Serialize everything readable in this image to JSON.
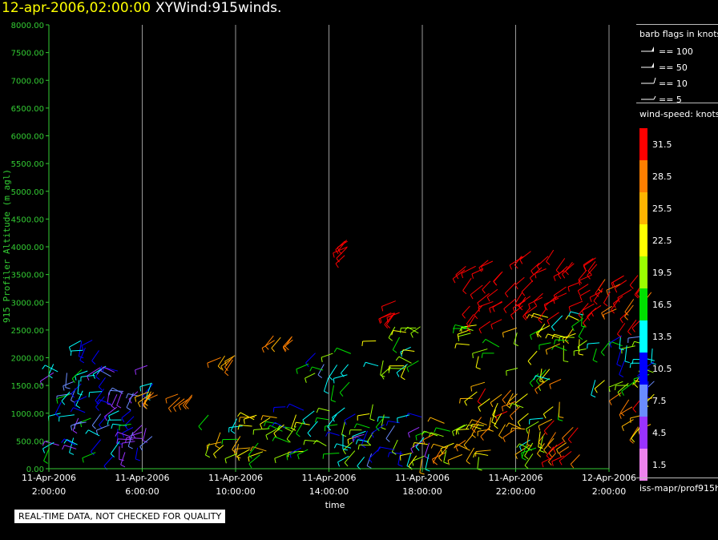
{
  "title": {
    "datetime": "12-apr-2006,02:00:00",
    "name": "XYWind:915winds."
  },
  "quality_note": "REAL-TIME DATA, NOT CHECKED FOR QUALITY",
  "source_label": "iss-mapr/prof915h",
  "barb_legend": {
    "title": "barb flags in knots",
    "items": [
      {
        "label": "== 100",
        "knots": 100
      },
      {
        "label": "== 50",
        "knots": 50
      },
      {
        "label": "== 10",
        "knots": 10
      },
      {
        "label": "== 5",
        "knots": 5
      }
    ]
  },
  "colors": {
    "axis": "#33cc33",
    "grid": "#9a9a9a",
    "text": "#ffffff",
    "title_date": "#ffff00"
  },
  "chart_data": {
    "type": "scatter",
    "subtype": "wind-barb time-height plot",
    "title": "XYWind:915winds.",
    "xlabel": "time",
    "ylabel": "915 Profiler Altitude (m agl)",
    "ylim": [
      0,
      8000
    ],
    "grid": "vertical lines at x ticks",
    "y_ticks": [
      "0.00",
      "500.00",
      "1000.00",
      "1500.00",
      "2000.00",
      "2500.00",
      "3000.00",
      "3500.00",
      "4000.00",
      "4500.00",
      "5000.00",
      "5500.00",
      "6000.00",
      "6500.00",
      "7000.00",
      "7500.00",
      "8000.00"
    ],
    "x_ticks": [
      {
        "date": "11-Apr-2006",
        "time": "2:00:00"
      },
      {
        "date": "11-Apr-2006",
        "time": "6:00:00"
      },
      {
        "date": "11-Apr-2006",
        "time": "10:00:00"
      },
      {
        "date": "11-Apr-2006",
        "time": "14:00:00"
      },
      {
        "date": "11-Apr-2006",
        "time": "18:00:00"
      },
      {
        "date": "11-Apr-2006",
        "time": "22:00:00"
      },
      {
        "date": "12-Apr-2006",
        "time": "2:00:00"
      }
    ],
    "xlim": [
      "11-Apr-2006 02:00",
      "12-Apr-2006 02:00"
    ],
    "colorbar": {
      "title": "wind-speed: knots",
      "levels": [
        {
          "label": "31.5",
          "color": "#ff0000"
        },
        {
          "label": "28.5",
          "color": "#ff7f00"
        },
        {
          "label": "25.5",
          "color": "#ffb400"
        },
        {
          "label": "22.5",
          "color": "#ffff00"
        },
        {
          "label": "19.5",
          "color": "#9aff00"
        },
        {
          "label": "16.5",
          "color": "#00e000"
        },
        {
          "label": "13.5",
          "color": "#00ffff"
        },
        {
          "label": "10.5",
          "color": "#0000ff"
        },
        {
          "label": "7.5",
          "color": "#6a8cff"
        },
        {
          "label": "4.5",
          "color": "#9a32ff"
        },
        {
          "label": "1.5",
          "color": "#ee82ee"
        }
      ]
    },
    "series": [
      {
        "hours": [
          0,
          4.5
        ],
        "alt": [
          200,
          1900
        ],
        "speed": [
          3,
          16
        ]
      },
      {
        "hours": [
          0.8,
          2.2
        ],
        "alt": [
          2100,
          2350
        ],
        "speed": [
          9,
          14
        ]
      },
      {
        "hours": [
          4.2,
          4.8
        ],
        "alt": [
          1300,
          1400
        ],
        "speed": [
          26,
          28
        ]
      },
      {
        "hours": [
          5.5,
          6.3
        ],
        "alt": [
          1250,
          1350
        ],
        "speed": [
          27,
          29
        ]
      },
      {
        "hours": [
          6.8,
          9.8
        ],
        "alt": [
          200,
          1000
        ],
        "speed": [
          14,
          27
        ]
      },
      {
        "hours": [
          7.2,
          8.0
        ],
        "alt": [
          1950,
          2050
        ],
        "speed": [
          26,
          28
        ]
      },
      {
        "hours": [
          9.6,
          10.5
        ],
        "alt": [
          2300,
          2400
        ],
        "speed": [
          26,
          29
        ]
      },
      {
        "hours": [
          10,
          14
        ],
        "alt": [
          200,
          1200
        ],
        "speed": [
          10,
          24
        ]
      },
      {
        "hours": [
          11,
          13
        ],
        "alt": [
          1500,
          2100
        ],
        "speed": [
          8,
          22
        ]
      },
      {
        "hours": [
          12.5,
          13
        ],
        "alt": [
          3750,
          4200
        ],
        "speed": [
          31,
          33
        ]
      },
      {
        "hours": [
          13.5,
          16.5
        ],
        "alt": [
          200,
          1000
        ],
        "speed": [
          4,
          20
        ]
      },
      {
        "hours": [
          14,
          16
        ],
        "alt": [
          1800,
          2600
        ],
        "speed": [
          12,
          24
        ]
      },
      {
        "hours": [
          14.6,
          15.8
        ],
        "alt": [
          2800,
          3050
        ],
        "speed": [
          30,
          32
        ]
      },
      {
        "hours": [
          15.5,
          19
        ],
        "alt": [
          150,
          900
        ],
        "speed": [
          16,
          28
        ]
      },
      {
        "hours": [
          18,
          20
        ],
        "alt": [
          700,
          1600
        ],
        "speed": [
          20,
          32
        ]
      },
      {
        "hours": [
          17.8,
          19.5
        ],
        "alt": [
          2000,
          2600
        ],
        "speed": [
          14,
          24
        ]
      },
      {
        "hours": [
          17.8,
          19.5
        ],
        "alt": [
          2600,
          3800
        ],
        "speed": [
          30,
          34
        ]
      },
      {
        "hours": [
          20,
          22
        ],
        "alt": [
          200,
          1900
        ],
        "speed": [
          12,
          30
        ]
      },
      {
        "hours": [
          20,
          23.5
        ],
        "alt": [
          2100,
          2800
        ],
        "speed": [
          14,
          28
        ]
      },
      {
        "hours": [
          20,
          23.5
        ],
        "alt": [
          2800,
          4000
        ],
        "speed": [
          30,
          34
        ]
      },
      {
        "hours": [
          21.5,
          23
        ],
        "alt": [
          200,
          900
        ],
        "speed": [
          26,
          32
        ]
      },
      {
        "hours": [
          23,
          26
        ],
        "alt": [
          1500,
          2400
        ],
        "speed": [
          8,
          22
        ]
      },
      {
        "hours": [
          23.5,
          26
        ],
        "alt": [
          2600,
          3500
        ],
        "speed": [
          28,
          34
        ]
      },
      {
        "hours": [
          24.5,
          26
        ],
        "alt": [
          700,
          1400
        ],
        "speed": [
          20,
          31
        ]
      }
    ]
  }
}
